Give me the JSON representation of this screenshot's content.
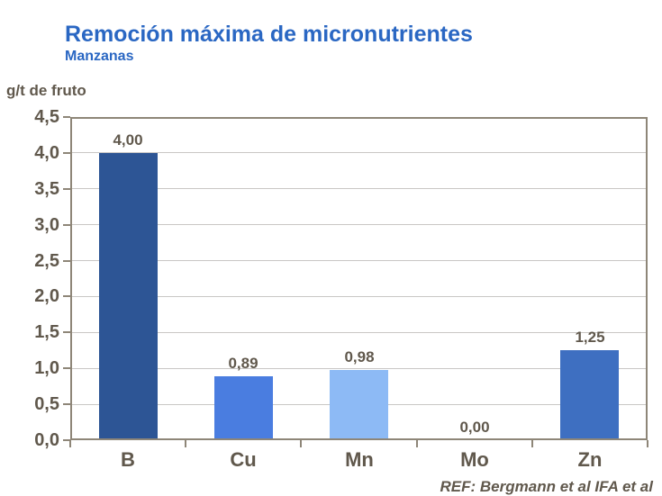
{
  "header": {
    "title": "Remoción máxima de micronutrientes",
    "subtitle": "Manzanas"
  },
  "footer": {
    "ref": "REF: Bergmann et al IFA et al"
  },
  "chart_data": {
    "type": "bar",
    "title": "Remoción máxima de micronutrientes",
    "subtitle": "Manzanas",
    "ylabel": "g/t de fruto",
    "xlabel": "",
    "categories": [
      "B",
      "Cu",
      "Mn",
      "Mo",
      "Zn"
    ],
    "values": [
      4.0,
      0.89,
      0.98,
      0.0,
      1.25
    ],
    "value_labels": [
      "4,00",
      "0,89",
      "0,98",
      "0,00",
      "1,25"
    ],
    "bar_colors": [
      "#2d5595",
      "#4a7de0",
      "#8dbaf5",
      null,
      "#3e6fc1"
    ],
    "ylim": [
      0,
      4.5
    ],
    "ytick_step": 0.5,
    "ytick_labels": [
      "0,0",
      "0,5",
      "1,0",
      "1,5",
      "2,0",
      "2,5",
      "3,0",
      "3,5",
      "4,0",
      "4,5"
    ],
    "grid": "horizontal",
    "legend": "none",
    "colors": {
      "background": "#ffffff",
      "title_blue": "#2a67c3",
      "axis_text": "#60584c",
      "plot_border": "#8e8678",
      "gridline": "#c9c7c5"
    }
  }
}
